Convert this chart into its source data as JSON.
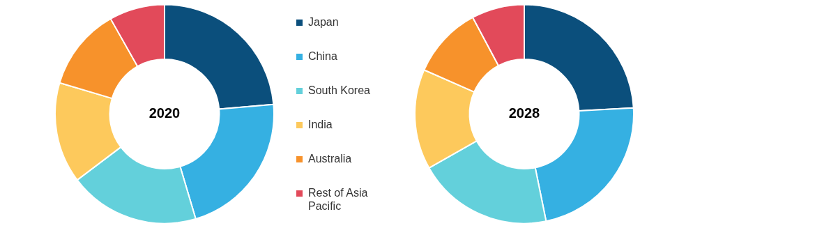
{
  "chart_data": {
    "type": "donut",
    "categories": [
      "Japan",
      "China",
      "South Korea",
      "India",
      "Australia",
      "Rest of Asia Pacific"
    ],
    "colors": [
      "#0b4f7c",
      "#35b0e2",
      "#63d0db",
      "#fdc95c",
      "#f7922b",
      "#e24a5a"
    ],
    "legend": "right",
    "series": [
      {
        "name": "2020",
        "values": [
          23.6,
          21.8,
          19.3,
          14.9,
          12.2,
          8.2
        ]
      },
      {
        "name": "2028",
        "values": [
          24.1,
          22.7,
          20.0,
          14.8,
          10.6,
          7.8
        ]
      }
    ]
  }
}
